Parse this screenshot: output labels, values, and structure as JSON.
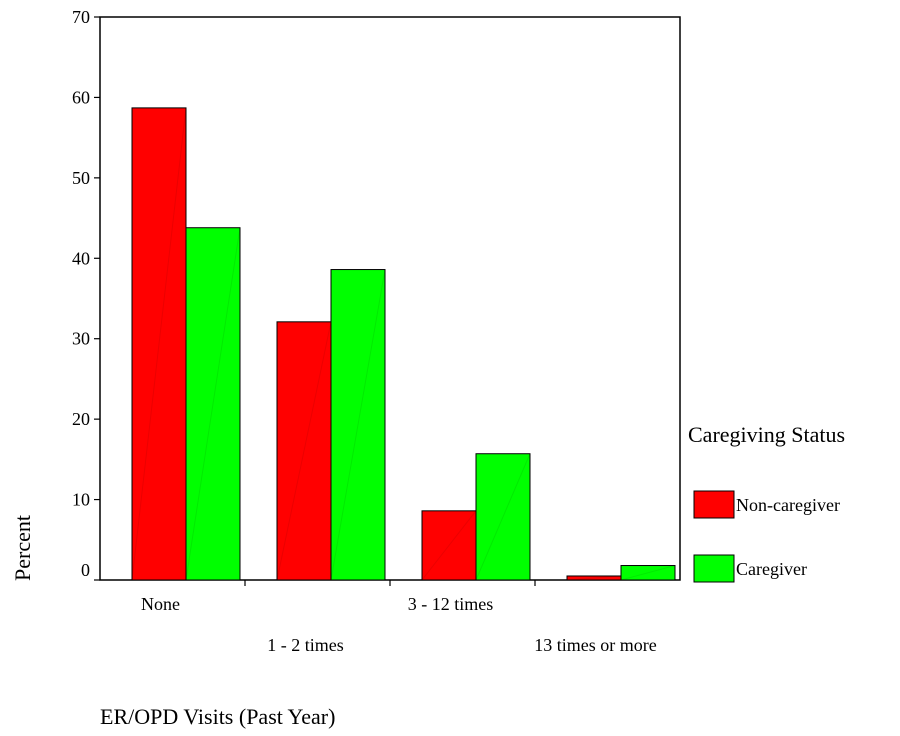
{
  "chart_data": {
    "type": "bar",
    "title": "",
    "xlabel": "ER/OPD Visits (Past Year)",
    "ylabel": "Percent",
    "ylim": [
      0,
      70
    ],
    "yticks": [
      0,
      10,
      20,
      30,
      40,
      50,
      60,
      70
    ],
    "categories": [
      "None",
      "1 - 2 times",
      "3 - 12 times",
      "13 times or more"
    ],
    "series": [
      {
        "name": "Non-caregiver",
        "values": [
          58.7,
          32.1,
          8.6,
          0.5
        ],
        "color": "#ff0000"
      },
      {
        "name": "Caregiver",
        "values": [
          43.8,
          38.6,
          15.7,
          1.8
        ],
        "color": "#00ff00"
      }
    ],
    "legend": {
      "title": "Caregiving Status",
      "placement": "right"
    },
    "grid": false
  }
}
